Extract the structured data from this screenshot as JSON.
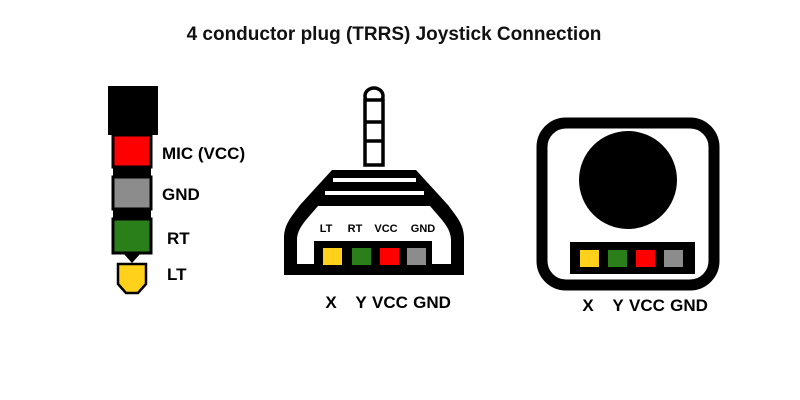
{
  "title": "4 conductor plug (TRRS) Joystick Connection",
  "colors": {
    "black": "#000000",
    "mic": "#ff0000",
    "gnd": "#8c8c8c",
    "rt": "#2a7f1a",
    "lt": "#ffd11a",
    "white": "#ffffff"
  },
  "plug": {
    "labels": {
      "mic": "MIC (VCC)",
      "gnd": "GND",
      "rt": "RT",
      "lt": "LT"
    }
  },
  "jack": {
    "top_labels": [
      "LT",
      "RT",
      "VCC",
      "GND"
    ],
    "bottom_labels": {
      "x": "X",
      "y": "Y",
      "vcc": "VCC",
      "gnd": "GND"
    }
  },
  "joystick": {
    "bottom_labels": {
      "x": "X",
      "y": "Y",
      "vcc": "VCC",
      "gnd": "GND"
    }
  }
}
